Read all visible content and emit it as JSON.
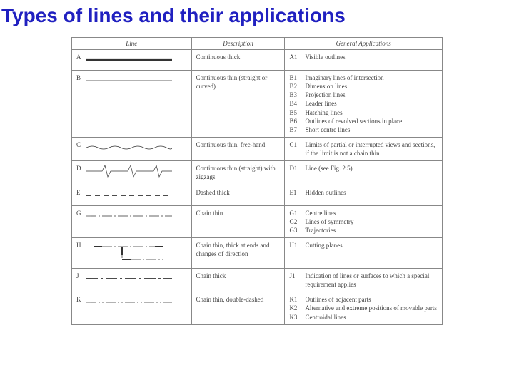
{
  "title": "Types of lines and their applications",
  "title_color": "#2020c0",
  "title_fontsize": 28,
  "headers": {
    "line": "Line",
    "desc": "Description",
    "app": "General Applications"
  },
  "table_border_color": "#888888",
  "text_color": "#444444",
  "body_fontsize": 9,
  "rows": [
    {
      "letter": "A",
      "line_type": "continuous-thick",
      "desc": "Continuous thick",
      "apps": [
        {
          "code": "A1",
          "text": "Visible outlines"
        }
      ]
    },
    {
      "letter": "B",
      "line_type": "continuous-thin",
      "desc": "Continuous thin (straight or curved)",
      "apps": [
        {
          "code": "B1",
          "text": "Imaginary lines of intersection"
        },
        {
          "code": "B2",
          "text": "Dimension lines"
        },
        {
          "code": "B3",
          "text": "Projection lines"
        },
        {
          "code": "B4",
          "text": "Leader lines"
        },
        {
          "code": "B5",
          "text": "Hatching lines"
        },
        {
          "code": "B6",
          "text": "Outlines of revolved sections in place"
        },
        {
          "code": "B7",
          "text": "Short centre lines"
        }
      ]
    },
    {
      "letter": "C",
      "line_type": "freehand",
      "desc": "Continuous thin, free-hand",
      "apps": [
        {
          "code": "C1",
          "text": "Limits of partial or interrupted views and sections, if the limit is not a chain thin"
        }
      ]
    },
    {
      "letter": "D",
      "line_type": "zigzag",
      "desc": "Continuous thin (straight) with zigzags",
      "apps": [
        {
          "code": "D1",
          "text": "Line (see Fig. 2.5)"
        }
      ]
    },
    {
      "letter": "E",
      "line_type": "dashed-thick",
      "desc": "Dashed thick",
      "apps": [
        {
          "code": "E1",
          "text": "Hidden outlines"
        }
      ]
    },
    {
      "letter": "G",
      "line_type": "chain-thin",
      "desc": "Chain thin",
      "apps": [
        {
          "code": "G1",
          "text": "Centre lines"
        },
        {
          "code": "G2",
          "text": "Lines of symmetry"
        },
        {
          "code": "G3",
          "text": "Trajectories"
        }
      ]
    },
    {
      "letter": "H",
      "line_type": "chain-thick-ends",
      "desc": "Chain thin, thick at ends and changes of direction",
      "apps": [
        {
          "code": "H1",
          "text": "Cutting planes"
        }
      ]
    },
    {
      "letter": "J",
      "line_type": "chain-thick",
      "desc": "Chain thick",
      "apps": [
        {
          "code": "J1",
          "text": "Indication of lines or surfaces to which a special requirement applies"
        }
      ]
    },
    {
      "letter": "K",
      "line_type": "chain-double-dashed",
      "desc": "Chain thin, double-dashed",
      "apps": [
        {
          "code": "K1",
          "text": "Outlines of adjacent parts"
        },
        {
          "code": "K2",
          "text": "Alternative and extreme positions of movable parts"
        },
        {
          "code": "K3",
          "text": "Centroidal lines"
        }
      ]
    }
  ],
  "line_samples": {
    "stroke_color": "#333333",
    "continuous-thick": {
      "stroke_width": 2.2
    },
    "continuous-thin": {
      "stroke_width": 0.7
    },
    "freehand": {
      "stroke_width": 0.7
    },
    "zigzag": {
      "stroke_width": 0.7
    },
    "dashed-thick": {
      "stroke_width": 1.8,
      "dash": "7,5"
    },
    "chain-thin": {
      "stroke_width": 0.7,
      "dash": "14,3,2,3"
    },
    "chain-thick-ends": {
      "stroke_width_thin": 0.7,
      "stroke_width_thick": 2.0
    },
    "chain-thick": {
      "stroke_width": 1.8,
      "dash": "16,4,3,4"
    },
    "chain-double-dashed": {
      "stroke_width": 0.7,
      "dash": "14,3,2,3,2,3"
    }
  }
}
